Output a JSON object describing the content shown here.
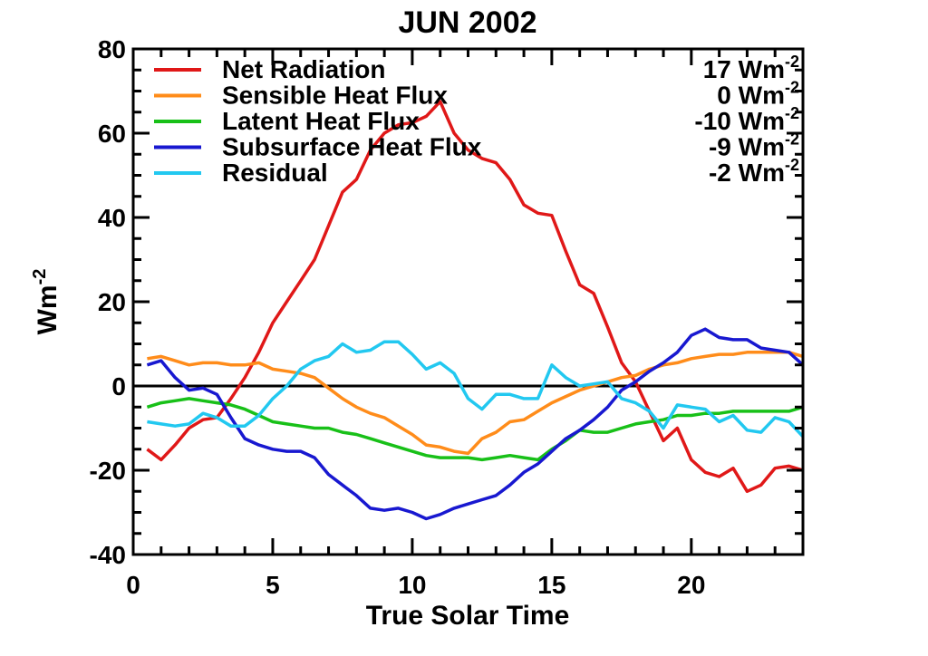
{
  "chart_data": {
    "type": "line",
    "title": "JUN 2002",
    "xlabel": "True Solar Time",
    "ylabel": "Wm",
    "ylabel_sup": "-2",
    "xlim": [
      0,
      24
    ],
    "ylim": [
      -40,
      80
    ],
    "x_ticks": [
      0,
      5,
      10,
      15,
      20
    ],
    "y_ticks": [
      -40,
      -20,
      0,
      20,
      40,
      60,
      80
    ],
    "zero_line": true,
    "legend_position": "top",
    "series": [
      {
        "name": "Net Radiation",
        "color": "#e01818",
        "mean_value": "17",
        "unit": "Wm",
        "unit_sup": "-2",
        "x": [
          0.5,
          1.0,
          1.5,
          2.0,
          2.5,
          3.0,
          3.5,
          4.0,
          4.5,
          5.0,
          5.5,
          6.0,
          6.5,
          7.0,
          7.5,
          8.0,
          8.5,
          9.0,
          9.5,
          10.0,
          10.5,
          11.0,
          11.5,
          12.0,
          12.5,
          13.0,
          13.5,
          14.0,
          14.5,
          15.0,
          15.5,
          16.0,
          16.5,
          17.0,
          17.5,
          18.0,
          18.5,
          19.0,
          19.5,
          20.0,
          20.5,
          21.0,
          21.5,
          22.0,
          22.5,
          23.0,
          23.5,
          24.0
        ],
        "y": [
          -15,
          -17.5,
          -14,
          -10,
          -8,
          -7.5,
          -3,
          2,
          8,
          15,
          20,
          25,
          30,
          38,
          46,
          49,
          56,
          60,
          62,
          62.5,
          64,
          67.5,
          60,
          56,
          54,
          53,
          49,
          43,
          41,
          40.5,
          32,
          24,
          22,
          14,
          5.5,
          1,
          -6,
          -13,
          -10,
          -17.5,
          -20.5,
          -21.5,
          -19.5,
          -25,
          -23.5,
          -19.5,
          -19,
          -20
        ]
      },
      {
        "name": "Sensible Heat Flux",
        "color": "#ff8c1a",
        "mean_value": "0",
        "unit": "Wm",
        "unit_sup": "-2",
        "x": [
          0.5,
          1.0,
          1.5,
          2.0,
          2.5,
          3.0,
          3.5,
          4.0,
          4.5,
          5.0,
          5.5,
          6.0,
          6.5,
          7.0,
          7.5,
          8.0,
          8.5,
          9.0,
          9.5,
          10.0,
          10.5,
          11.0,
          11.5,
          12.0,
          12.5,
          13.0,
          13.5,
          14.0,
          14.5,
          15.0,
          15.5,
          16.0,
          16.5,
          17.0,
          17.5,
          18.0,
          18.5,
          19.0,
          19.5,
          20.0,
          20.5,
          21.0,
          21.5,
          22.0,
          22.5,
          23.0,
          23.5,
          24.0
        ],
        "y": [
          6.5,
          7,
          6,
          5,
          5.5,
          5.5,
          5,
          5,
          5.5,
          4,
          3.5,
          3,
          2,
          -0.5,
          -3,
          -5,
          -6.5,
          -7.5,
          -9.5,
          -11.5,
          -14,
          -14.5,
          -15.5,
          -16,
          -12.5,
          -11,
          -8.5,
          -8,
          -6,
          -4,
          -2.5,
          -1,
          0,
          1,
          2,
          2.5,
          4,
          5,
          5.5,
          6.5,
          7,
          7.5,
          7.5,
          8,
          8,
          8,
          8,
          7
        ]
      },
      {
        "name": "Latent Heat Flux",
        "color": "#18c018",
        "mean_value": "-10",
        "unit": "Wm",
        "unit_sup": "-2",
        "x": [
          0.5,
          1.0,
          1.5,
          2.0,
          2.5,
          3.0,
          3.5,
          4.0,
          4.5,
          5.0,
          5.5,
          6.0,
          6.5,
          7.0,
          7.5,
          8.0,
          8.5,
          9.0,
          9.5,
          10.0,
          10.5,
          11.0,
          11.5,
          12.0,
          12.5,
          13.0,
          13.5,
          14.0,
          14.5,
          15.0,
          15.5,
          16.0,
          16.5,
          17.0,
          17.5,
          18.0,
          18.5,
          19.0,
          19.5,
          20.0,
          20.5,
          21.0,
          21.5,
          22.0,
          22.5,
          23.0,
          23.5,
          24.0
        ],
        "y": [
          -5,
          -4,
          -3.5,
          -3,
          -3.5,
          -4,
          -4.5,
          -5.5,
          -7,
          -8.5,
          -9,
          -9.5,
          -10,
          -10,
          -11,
          -11.5,
          -12.5,
          -13.5,
          -14.5,
          -15.5,
          -16.5,
          -17,
          -17,
          -17,
          -17.5,
          -17,
          -16.5,
          -17,
          -17.5,
          -15,
          -13,
          -10.5,
          -11,
          -11,
          -10,
          -9,
          -8.5,
          -8,
          -7,
          -7,
          -6.5,
          -6.5,
          -6,
          -6,
          -6,
          -6,
          -6,
          -5
        ]
      },
      {
        "name": "Subsurface Heat Flux",
        "color": "#1818d0",
        "mean_value": "-9",
        "unit": "Wm",
        "unit_sup": "-2",
        "x": [
          0.5,
          1.0,
          1.5,
          2.0,
          2.5,
          3.0,
          3.5,
          4.0,
          4.5,
          5.0,
          5.5,
          6.0,
          6.5,
          7.0,
          7.5,
          8.0,
          8.5,
          9.0,
          9.5,
          10.0,
          10.5,
          11.0,
          11.5,
          12.0,
          12.5,
          13.0,
          13.5,
          14.0,
          14.5,
          15.0,
          15.5,
          16.0,
          16.5,
          17.0,
          17.5,
          18.0,
          18.5,
          19.0,
          19.5,
          20.0,
          20.5,
          21.0,
          21.5,
          22.0,
          22.5,
          23.0,
          23.5,
          24.0
        ],
        "y": [
          5,
          6,
          2,
          -1,
          -0.5,
          -2,
          -7.5,
          -12.5,
          -14,
          -15,
          -15.5,
          -15.5,
          -17,
          -21,
          -23.5,
          -26,
          -29,
          -29.5,
          -29,
          -30,
          -31.5,
          -30.5,
          -29,
          -28,
          -27,
          -26,
          -23.5,
          -20.5,
          -18.5,
          -15.5,
          -12.5,
          -10.5,
          -8,
          -5,
          -1,
          1,
          3.5,
          5.5,
          8,
          12,
          13.5,
          11.5,
          11,
          11,
          9,
          8.5,
          8,
          5
        ]
      },
      {
        "name": "Residual",
        "color": "#22c8f0",
        "mean_value": "-2",
        "unit": "Wm",
        "unit_sup": "-2",
        "x": [
          0.5,
          1.0,
          1.5,
          2.0,
          2.5,
          3.0,
          3.5,
          4.0,
          4.5,
          5.0,
          5.5,
          6.0,
          6.5,
          7.0,
          7.5,
          8.0,
          8.5,
          9.0,
          9.5,
          10.0,
          10.5,
          11.0,
          11.5,
          12.0,
          12.5,
          13.0,
          13.5,
          14.0,
          14.5,
          15.0,
          15.5,
          16.0,
          16.5,
          17.0,
          17.5,
          18.0,
          18.5,
          19.0,
          19.5,
          20.0,
          20.5,
          21.0,
          21.5,
          22.0,
          22.5,
          23.0,
          23.5,
          24.0
        ],
        "y": [
          -8.5,
          -9,
          -9.5,
          -9,
          -6.5,
          -7.5,
          -9.5,
          -9.5,
          -7,
          -3,
          0,
          4,
          6,
          7,
          10,
          8,
          8.5,
          10.5,
          10.5,
          7.5,
          4,
          5.5,
          3,
          -3,
          -5.5,
          -2,
          -2,
          -3,
          -3,
          5,
          2,
          0,
          0.5,
          1,
          -3,
          -4,
          -6,
          -10,
          -4.5,
          -5,
          -5.5,
          -8.5,
          -7,
          -10.5,
          -11,
          -7.5,
          -8.5,
          -12
        ]
      }
    ]
  }
}
